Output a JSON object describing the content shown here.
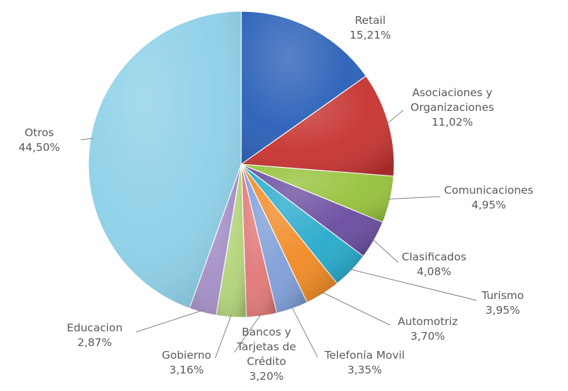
{
  "chart_data": {
    "type": "pie",
    "title": "",
    "start_angle_deg": 0,
    "direction": "clockwise",
    "slices": [
      {
        "label": "Retail",
        "value": 15.21,
        "value_label": "15,21%",
        "color": "#2a60b8"
      },
      {
        "label": "Asociaciones y Organizaciones",
        "value": 11.02,
        "value_label": "11,02%",
        "color": "#c63330"
      },
      {
        "label": "Comunicaciones",
        "value": 4.95,
        "value_label": "4,95%",
        "color": "#96c23c"
      },
      {
        "label": "Clasificados",
        "value": 4.08,
        "value_label": "4,08%",
        "color": "#6a4da0"
      },
      {
        "label": "Turismo",
        "value": 3.95,
        "value_label": "3,95%",
        "color": "#27aacb"
      },
      {
        "label": "Automotriz",
        "value": 3.7,
        "value_label": "3,70%",
        "color": "#f08a24"
      },
      {
        "label": "Telefonía Movil",
        "value": 3.35,
        "value_label": "3,35%",
        "color": "#7f9fd8"
      },
      {
        "label": "Bancos y Tarjetas de Crédito",
        "value": 3.2,
        "value_label": "3,20%",
        "color": "#e07878"
      },
      {
        "label": "Gobierno",
        "value": 3.16,
        "value_label": "3,16%",
        "color": "#b3d37a"
      },
      {
        "label": "Educacion",
        "value": 2.87,
        "value_label": "2,87%",
        "color": "#a48fc6"
      },
      {
        "label": "Otros",
        "value": 44.5,
        "value_label": "44,50%",
        "color": "#8dd0e8"
      }
    ]
  }
}
